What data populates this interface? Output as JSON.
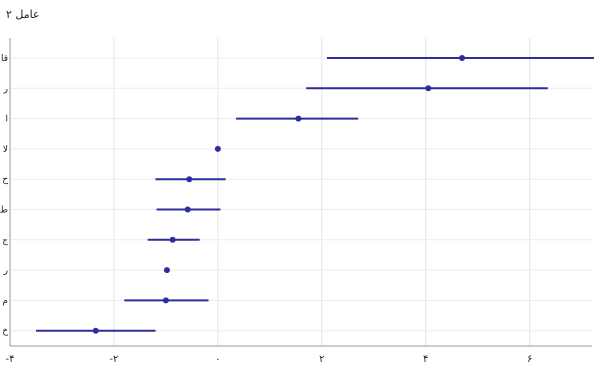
{
  "chart_data": {
    "type": "scatter",
    "title": "عامل ۲",
    "xlabel": "",
    "ylabel": "",
    "xlim": [
      -4,
      7.2
    ],
    "xticks": [
      {
        "value": -4,
        "label": "-۴"
      },
      {
        "value": -2,
        "label": "-۲"
      },
      {
        "value": 0,
        "label": "۰"
      },
      {
        "value": 2,
        "label": "۲"
      },
      {
        "value": 4,
        "label": "۴"
      },
      {
        "value": 6,
        "label": "۶"
      }
    ],
    "grid": true,
    "color": "#2e2e9a",
    "categories": [
      "قا",
      "ر",
      "ا",
      "لا",
      "ح",
      "ط",
      "ج",
      "ر",
      "م",
      "خ"
    ],
    "series": [
      {
        "values": [
          4.7,
          4.05,
          1.55,
          0.0,
          -0.55,
          -0.58,
          -0.87,
          -0.98,
          -1.0,
          -2.35
        ],
        "ci_low": [
          2.1,
          1.7,
          0.35,
          0.0,
          -1.2,
          -1.18,
          -1.35,
          -0.98,
          -1.8,
          -3.5
        ],
        "ci_high": [
          7.25,
          6.35,
          2.7,
          0.0,
          0.15,
          0.05,
          -0.35,
          -0.98,
          -0.18,
          -1.2
        ]
      }
    ]
  }
}
